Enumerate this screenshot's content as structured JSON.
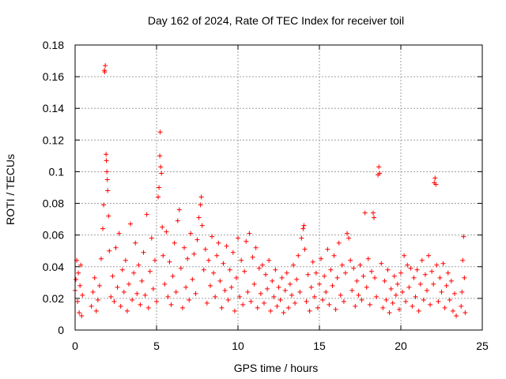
{
  "chart_data": {
    "type": "scatter",
    "title": "Day 162 of 2024, Rate Of TEC Index for receiver toil",
    "xlabel": "GPS time / hours",
    "ylabel": "ROTI / TECUs",
    "xlim": [
      0,
      25
    ],
    "ylim": [
      0,
      0.18
    ],
    "x_ticks": [
      0,
      5,
      10,
      15,
      20,
      25
    ],
    "x_tick_labels": [
      "0",
      "5",
      "10",
      "15",
      "20",
      "25"
    ],
    "y_ticks": [
      0,
      0.02,
      0.04,
      0.06,
      0.08,
      0.1,
      0.12,
      0.14,
      0.16,
      0.18
    ],
    "y_tick_labels": [
      "0",
      "0.02",
      "0.04",
      "0.06",
      "0.08",
      "0.1",
      "0.12",
      "0.14",
      "0.16",
      "0.18"
    ],
    "grid": true,
    "marker": "plus",
    "series": [
      {
        "name": "ROTI",
        "color": "#ff0000",
        "points": [
          [
            0.0,
            0.025
          ],
          [
            0.05,
            0.032
          ],
          [
            0.1,
            0.044
          ],
          [
            0.15,
            0.018
          ],
          [
            0.2,
            0.036
          ],
          [
            0.25,
            0.011
          ],
          [
            0.3,
            0.028
          ],
          [
            0.35,
            0.041
          ],
          [
            0.4,
            0.009
          ],
          [
            0.45,
            0.022
          ],
          [
            1.0,
            0.015
          ],
          [
            1.1,
            0.024
          ],
          [
            1.2,
            0.033
          ],
          [
            1.3,
            0.012
          ],
          [
            1.4,
            0.019
          ],
          [
            1.5,
            0.028
          ],
          [
            1.6,
            0.045
          ],
          [
            1.7,
            0.064
          ],
          [
            1.75,
            0.079
          ],
          [
            1.8,
            0.164
          ],
          [
            1.82,
            0.163
          ],
          [
            1.85,
            0.167
          ],
          [
            1.9,
            0.111
          ],
          [
            1.92,
            0.107
          ],
          [
            1.95,
            0.1
          ],
          [
            1.98,
            0.095
          ],
          [
            2.0,
            0.088
          ],
          [
            2.05,
            0.072
          ],
          [
            2.1,
            0.05
          ],
          [
            2.2,
            0.021
          ],
          [
            2.3,
            0.034
          ],
          [
            2.4,
            0.018
          ],
          [
            2.5,
            0.052
          ],
          [
            2.6,
            0.027
          ],
          [
            2.7,
            0.061
          ],
          [
            2.8,
            0.015
          ],
          [
            2.9,
            0.038
          ],
          [
            3.0,
            0.024
          ],
          [
            3.1,
            0.044
          ],
          [
            3.2,
            0.012
          ],
          [
            3.3,
            0.029
          ],
          [
            3.4,
            0.067
          ],
          [
            3.5,
            0.019
          ],
          [
            3.6,
            0.036
          ],
          [
            3.7,
            0.055
          ],
          [
            3.8,
            0.023
          ],
          [
            3.9,
            0.041
          ],
          [
            4.0,
            0.016
          ],
          [
            4.1,
            0.031
          ],
          [
            4.2,
            0.049
          ],
          [
            4.3,
            0.022
          ],
          [
            4.4,
            0.073
          ],
          [
            4.5,
            0.014
          ],
          [
            4.6,
            0.037
          ],
          [
            4.7,
            0.058
          ],
          [
            4.8,
            0.026
          ],
          [
            4.9,
            0.044
          ],
          [
            5.0,
            0.018
          ],
          [
            5.1,
            0.084
          ],
          [
            5.15,
            0.09
          ],
          [
            5.2,
            0.11
          ],
          [
            5.22,
            0.125
          ],
          [
            5.25,
            0.103
          ],
          [
            5.3,
            0.099
          ],
          [
            5.35,
            0.065
          ],
          [
            5.4,
            0.047
          ],
          [
            5.5,
            0.029
          ],
          [
            5.6,
            0.062
          ],
          [
            5.7,
            0.021
          ],
          [
            5.8,
            0.043
          ],
          [
            5.9,
            0.016
          ],
          [
            6.0,
            0.034
          ],
          [
            6.1,
            0.055
          ],
          [
            6.2,
            0.024
          ],
          [
            6.3,
            0.069
          ],
          [
            6.4,
            0.076
          ],
          [
            6.5,
            0.039
          ],
          [
            6.6,
            0.014
          ],
          [
            6.7,
            0.052
          ],
          [
            6.8,
            0.027
          ],
          [
            6.9,
            0.045
          ],
          [
            7.0,
            0.019
          ],
          [
            7.1,
            0.061
          ],
          [
            7.2,
            0.032
          ],
          [
            7.3,
            0.048
          ],
          [
            7.4,
            0.023
          ],
          [
            7.5,
            0.057
          ],
          [
            7.6,
            0.071
          ],
          [
            7.7,
            0.079
          ],
          [
            7.75,
            0.084
          ],
          [
            7.8,
            0.066
          ],
          [
            7.9,
            0.038
          ],
          [
            8.0,
            0.051
          ],
          [
            8.1,
            0.017
          ],
          [
            8.2,
            0.044
          ],
          [
            8.3,
            0.028
          ],
          [
            8.4,
            0.059
          ],
          [
            8.5,
            0.036
          ],
          [
            8.6,
            0.021
          ],
          [
            8.7,
            0.047
          ],
          [
            8.8,
            0.055
          ],
          [
            8.9,
            0.031
          ],
          [
            9.0,
            0.014
          ],
          [
            9.1,
            0.042
          ],
          [
            9.2,
            0.025
          ],
          [
            9.3,
            0.053
          ],
          [
            9.4,
            0.019
          ],
          [
            9.5,
            0.038
          ],
          [
            9.6,
            0.027
          ],
          [
            9.7,
            0.049
          ],
          [
            9.8,
            0.012
          ],
          [
            9.9,
            0.033
          ],
          [
            10.0,
            0.058
          ],
          [
            10.1,
            0.021
          ],
          [
            10.2,
            0.044
          ],
          [
            10.3,
            0.016
          ],
          [
            10.4,
            0.037
          ],
          [
            10.5,
            0.056
          ],
          [
            10.6,
            0.024
          ],
          [
            10.7,
            0.061
          ],
          [
            10.8,
            0.018
          ],
          [
            10.9,
            0.046
          ],
          [
            11.0,
            0.029
          ],
          [
            11.1,
            0.052
          ],
          [
            11.2,
            0.014
          ],
          [
            11.3,
            0.039
          ],
          [
            11.4,
            0.023
          ],
          [
            11.5,
            0.041
          ],
          [
            11.6,
            0.017
          ],
          [
            11.7,
            0.035
          ],
          [
            11.8,
            0.026
          ],
          [
            11.9,
            0.044
          ],
          [
            12.0,
            0.012
          ],
          [
            12.1,
            0.031
          ],
          [
            12.2,
            0.021
          ],
          [
            12.3,
            0.038
          ],
          [
            12.4,
            0.015
          ],
          [
            12.5,
            0.027
          ],
          [
            12.6,
            0.019
          ],
          [
            12.7,
            0.033
          ],
          [
            12.8,
            0.011
          ],
          [
            12.9,
            0.025
          ],
          [
            13.0,
            0.036
          ],
          [
            13.1,
            0.014
          ],
          [
            13.2,
            0.029
          ],
          [
            13.3,
            0.022
          ],
          [
            13.4,
            0.041
          ],
          [
            13.5,
            0.017
          ],
          [
            13.6,
            0.032
          ],
          [
            13.7,
            0.047
          ],
          [
            13.8,
            0.024
          ],
          [
            13.9,
            0.058
          ],
          [
            14.0,
            0.064
          ],
          [
            14.05,
            0.066
          ],
          [
            14.1,
            0.051
          ],
          [
            14.2,
            0.018
          ],
          [
            14.3,
            0.035
          ],
          [
            14.4,
            0.012
          ],
          [
            14.5,
            0.027
          ],
          [
            14.6,
            0.043
          ],
          [
            14.7,
            0.021
          ],
          [
            14.8,
            0.036
          ],
          [
            14.9,
            0.014
          ],
          [
            15.0,
            0.029
          ],
          [
            15.1,
            0.045
          ],
          [
            15.2,
            0.019
          ],
          [
            15.3,
            0.034
          ],
          [
            15.4,
            0.024
          ],
          [
            15.5,
            0.051
          ],
          [
            15.6,
            0.016
          ],
          [
            15.7,
            0.038
          ],
          [
            15.8,
            0.028
          ],
          [
            15.9,
            0.047
          ],
          [
            16.0,
            0.013
          ],
          [
            16.1,
            0.033
          ],
          [
            16.2,
            0.055
          ],
          [
            16.3,
            0.022
          ],
          [
            16.4,
            0.041
          ],
          [
            16.5,
            0.018
          ],
          [
            16.6,
            0.036
          ],
          [
            16.7,
            0.061
          ],
          [
            16.8,
            0.058
          ],
          [
            16.9,
            0.044
          ],
          [
            17.0,
            0.025
          ],
          [
            17.1,
            0.039
          ],
          [
            17.2,
            0.015
          ],
          [
            17.3,
            0.031
          ],
          [
            17.4,
            0.022
          ],
          [
            17.5,
            0.041
          ],
          [
            17.6,
            0.019
          ],
          [
            17.7,
            0.034
          ],
          [
            17.8,
            0.074
          ],
          [
            17.9,
            0.027
          ],
          [
            18.0,
            0.045
          ],
          [
            18.1,
            0.016
          ],
          [
            18.2,
            0.037
          ],
          [
            18.3,
            0.074
          ],
          [
            18.35,
            0.071
          ],
          [
            18.4,
            0.033
          ],
          [
            18.5,
            0.021
          ],
          [
            18.6,
            0.098
          ],
          [
            18.65,
            0.103
          ],
          [
            18.7,
            0.099
          ],
          [
            18.8,
            0.042
          ],
          [
            18.9,
            0.014
          ],
          [
            19.0,
            0.031
          ],
          [
            19.1,
            0.019
          ],
          [
            19.2,
            0.038
          ],
          [
            19.3,
            0.011
          ],
          [
            19.4,
            0.026
          ],
          [
            19.5,
            0.017
          ],
          [
            19.6,
            0.034
          ],
          [
            19.7,
            0.022
          ],
          [
            19.8,
            0.029
          ],
          [
            19.9,
            0.013
          ],
          [
            20.0,
            0.036
          ],
          [
            20.1,
            0.024
          ],
          [
            20.2,
            0.047
          ],
          [
            20.3,
            0.018
          ],
          [
            20.4,
            0.041
          ],
          [
            20.5,
            0.027
          ],
          [
            20.6,
            0.039
          ],
          [
            20.7,
            0.015
          ],
          [
            20.8,
            0.033
          ],
          [
            20.9,
            0.021
          ],
          [
            21.0,
            0.038
          ],
          [
            21.1,
            0.012
          ],
          [
            21.2,
            0.029
          ],
          [
            21.3,
            0.044
          ],
          [
            21.4,
            0.019
          ],
          [
            21.5,
            0.035
          ],
          [
            21.6,
            0.025
          ],
          [
            21.7,
            0.047
          ],
          [
            21.8,
            0.016
          ],
          [
            21.9,
            0.037
          ],
          [
            22.0,
            0.029
          ],
          [
            22.05,
            0.093
          ],
          [
            22.1,
            0.096
          ],
          [
            22.15,
            0.092
          ],
          [
            22.2,
            0.041
          ],
          [
            22.3,
            0.018
          ],
          [
            22.4,
            0.033
          ],
          [
            22.5,
            0.024
          ],
          [
            22.6,
            0.042
          ],
          [
            22.7,
            0.014
          ],
          [
            22.8,
            0.028
          ],
          [
            22.9,
            0.036
          ],
          [
            23.0,
            0.019
          ],
          [
            23.1,
            0.031
          ],
          [
            23.2,
            0.012
          ],
          [
            23.3,
            0.023
          ],
          [
            23.4,
            0.009
          ],
          [
            23.7,
            0.015
          ],
          [
            23.75,
            0.024
          ],
          [
            23.8,
            0.044
          ],
          [
            23.85,
            0.059
          ],
          [
            23.9,
            0.033
          ],
          [
            23.95,
            0.011
          ]
        ]
      }
    ]
  }
}
